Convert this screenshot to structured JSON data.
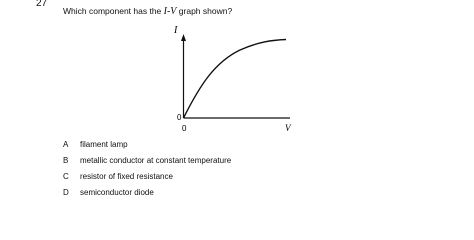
{
  "question": {
    "number": "27",
    "text_before": "Which component has the ",
    "text_italic": "I-V",
    "text_after": " graph shown?"
  },
  "graph": {
    "y_label": "I",
    "x_label": "V",
    "origin_labels": [
      "0",
      "0"
    ]
  },
  "options": [
    {
      "letter": "A",
      "text": "filament lamp"
    },
    {
      "letter": "B",
      "text": "metallic conductor at constant temperature"
    },
    {
      "letter": "C",
      "text": "resistor of fixed resistance"
    },
    {
      "letter": "D",
      "text": "semiconductor diode"
    }
  ]
}
